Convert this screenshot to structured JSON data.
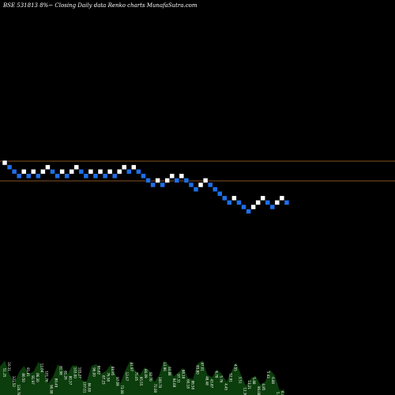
{
  "chart_data": {
    "type": "renko",
    "title": "BSE 531813 8%~   Closing Daily data  Renko  charts MunafaSutra.com",
    "colors": {
      "background": "#000000",
      "up_brick": "#ffffff",
      "down_brick": "#1e6fe8",
      "reference_line": "#b06a2a",
      "volume_area": "#0c3d0c"
    },
    "bricks": [
      {
        "level": 0,
        "dir": "up"
      },
      {
        "level": -1,
        "dir": "down"
      },
      {
        "level": -2,
        "dir": "down"
      },
      {
        "level": -3,
        "dir": "down"
      },
      {
        "level": -2,
        "dir": "up"
      },
      {
        "level": -3,
        "dir": "down"
      },
      {
        "level": -2,
        "dir": "up"
      },
      {
        "level": -3,
        "dir": "down"
      },
      {
        "level": -2,
        "dir": "up"
      },
      {
        "level": -1,
        "dir": "up"
      },
      {
        "level": -2,
        "dir": "down"
      },
      {
        "level": -3,
        "dir": "down"
      },
      {
        "level": -2,
        "dir": "up"
      },
      {
        "level": -3,
        "dir": "down"
      },
      {
        "level": -2,
        "dir": "up"
      },
      {
        "level": -1,
        "dir": "up"
      },
      {
        "level": -2,
        "dir": "down"
      },
      {
        "level": -3,
        "dir": "down"
      },
      {
        "level": -2,
        "dir": "up"
      },
      {
        "level": -3,
        "dir": "down"
      },
      {
        "level": -2,
        "dir": "up"
      },
      {
        "level": -3,
        "dir": "down"
      },
      {
        "level": -2,
        "dir": "up"
      },
      {
        "level": -3,
        "dir": "down"
      },
      {
        "level": -2,
        "dir": "up"
      },
      {
        "level": -1,
        "dir": "up"
      },
      {
        "level": -2,
        "dir": "down"
      },
      {
        "level": -1,
        "dir": "up"
      },
      {
        "level": -2,
        "dir": "down"
      },
      {
        "level": -3,
        "dir": "down"
      },
      {
        "level": -4,
        "dir": "down"
      },
      {
        "level": -5,
        "dir": "down"
      },
      {
        "level": -4,
        "dir": "up"
      },
      {
        "level": -5,
        "dir": "down"
      },
      {
        "level": -4,
        "dir": "up"
      },
      {
        "level": -3,
        "dir": "up"
      },
      {
        "level": -4,
        "dir": "down"
      },
      {
        "level": -3,
        "dir": "up"
      },
      {
        "level": -4,
        "dir": "down"
      },
      {
        "level": -5,
        "dir": "down"
      },
      {
        "level": -6,
        "dir": "down"
      },
      {
        "level": -5,
        "dir": "up"
      },
      {
        "level": -4,
        "dir": "up"
      },
      {
        "level": -5,
        "dir": "down"
      },
      {
        "level": -6,
        "dir": "down"
      },
      {
        "level": -7,
        "dir": "down"
      },
      {
        "level": -8,
        "dir": "down"
      },
      {
        "level": -9,
        "dir": "down"
      },
      {
        "level": -8,
        "dir": "up"
      },
      {
        "level": -9,
        "dir": "down"
      },
      {
        "level": -10,
        "dir": "down"
      },
      {
        "level": -11,
        "dir": "down"
      },
      {
        "level": -10,
        "dir": "up"
      },
      {
        "level": -9,
        "dir": "up"
      },
      {
        "level": -8,
        "dir": "up"
      },
      {
        "level": -9,
        "dir": "down"
      },
      {
        "level": -10,
        "dir": "down"
      },
      {
        "level": -9,
        "dir": "up"
      },
      {
        "level": -8,
        "dir": "up"
      },
      {
        "level": -9,
        "dir": "down"
      }
    ],
    "volume_labels": [
      "51.25",
      "10.31",
      "121.52",
      "120.78",
      "80.50",
      "81.81",
      "91.97",
      "86.30",
      "12.04",
      "101.76",
      "90.08",
      "80.49",
      "81.98",
      "81.26",
      "80.37",
      "103.00",
      "103.27",
      "107.01",
      "84.00",
      "96.00",
      "88.82",
      "87.23",
      "76.58",
      "88.95",
      "97.09",
      "73.08",
      "12.67",
      "81.97",
      "75.05",
      "95.55",
      "84.09",
      "92.70",
      "72.00",
      "100.70",
      "12.96",
      "93.88",
      "94.08",
      "97.31",
      "98.18",
      "60.18",
      "86.50",
      "83.80",
      "97.01",
      "48.48",
      "43.87",
      "6.78",
      "5.76",
      "4.45",
      "52.91",
      "4.55",
      "3.51",
      "12.30",
      "13.21",
      "5.88",
      "96.00",
      "4.85",
      "5.43",
      "6.80",
      "5.38",
      "6.45"
    ]
  }
}
